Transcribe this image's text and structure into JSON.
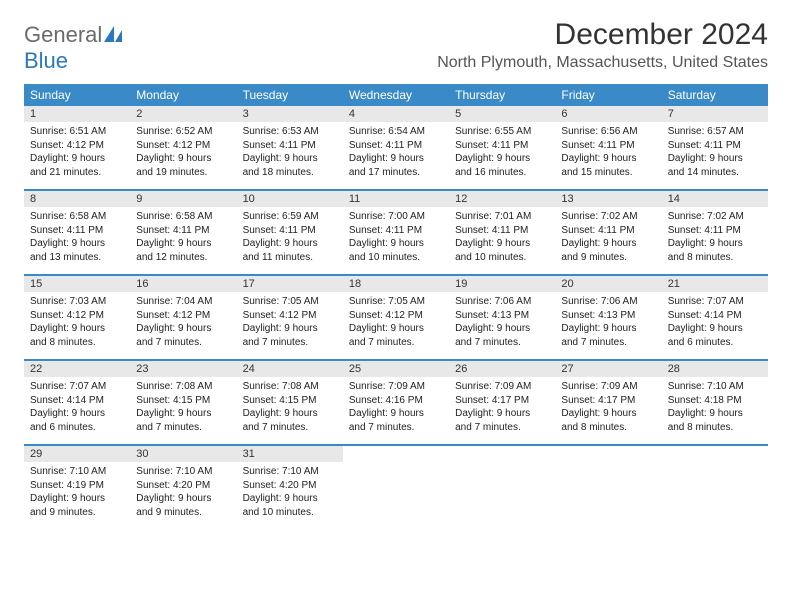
{
  "logo": {
    "text1": "General",
    "text2": "Blue"
  },
  "title": "December 2024",
  "location": "North Plymouth, Massachusetts, United States",
  "colors": {
    "header_bg": "#3a8ac7",
    "header_text": "#ffffff",
    "daynum_bg": "#e8e8e8",
    "logo_gray": "#6b6b6b",
    "logo_blue": "#2a78bd"
  },
  "daysOfWeek": [
    "Sunday",
    "Monday",
    "Tuesday",
    "Wednesday",
    "Thursday",
    "Friday",
    "Saturday"
  ],
  "weeks": [
    [
      {
        "n": "1",
        "sr": "Sunrise: 6:51 AM",
        "ss": "Sunset: 4:12 PM",
        "d1": "Daylight: 9 hours",
        "d2": "and 21 minutes."
      },
      {
        "n": "2",
        "sr": "Sunrise: 6:52 AM",
        "ss": "Sunset: 4:12 PM",
        "d1": "Daylight: 9 hours",
        "d2": "and 19 minutes."
      },
      {
        "n": "3",
        "sr": "Sunrise: 6:53 AM",
        "ss": "Sunset: 4:11 PM",
        "d1": "Daylight: 9 hours",
        "d2": "and 18 minutes."
      },
      {
        "n": "4",
        "sr": "Sunrise: 6:54 AM",
        "ss": "Sunset: 4:11 PM",
        "d1": "Daylight: 9 hours",
        "d2": "and 17 minutes."
      },
      {
        "n": "5",
        "sr": "Sunrise: 6:55 AM",
        "ss": "Sunset: 4:11 PM",
        "d1": "Daylight: 9 hours",
        "d2": "and 16 minutes."
      },
      {
        "n": "6",
        "sr": "Sunrise: 6:56 AM",
        "ss": "Sunset: 4:11 PM",
        "d1": "Daylight: 9 hours",
        "d2": "and 15 minutes."
      },
      {
        "n": "7",
        "sr": "Sunrise: 6:57 AM",
        "ss": "Sunset: 4:11 PM",
        "d1": "Daylight: 9 hours",
        "d2": "and 14 minutes."
      }
    ],
    [
      {
        "n": "8",
        "sr": "Sunrise: 6:58 AM",
        "ss": "Sunset: 4:11 PM",
        "d1": "Daylight: 9 hours",
        "d2": "and 13 minutes."
      },
      {
        "n": "9",
        "sr": "Sunrise: 6:58 AM",
        "ss": "Sunset: 4:11 PM",
        "d1": "Daylight: 9 hours",
        "d2": "and 12 minutes."
      },
      {
        "n": "10",
        "sr": "Sunrise: 6:59 AM",
        "ss": "Sunset: 4:11 PM",
        "d1": "Daylight: 9 hours",
        "d2": "and 11 minutes."
      },
      {
        "n": "11",
        "sr": "Sunrise: 7:00 AM",
        "ss": "Sunset: 4:11 PM",
        "d1": "Daylight: 9 hours",
        "d2": "and 10 minutes."
      },
      {
        "n": "12",
        "sr": "Sunrise: 7:01 AM",
        "ss": "Sunset: 4:11 PM",
        "d1": "Daylight: 9 hours",
        "d2": "and 10 minutes."
      },
      {
        "n": "13",
        "sr": "Sunrise: 7:02 AM",
        "ss": "Sunset: 4:11 PM",
        "d1": "Daylight: 9 hours",
        "d2": "and 9 minutes."
      },
      {
        "n": "14",
        "sr": "Sunrise: 7:02 AM",
        "ss": "Sunset: 4:11 PM",
        "d1": "Daylight: 9 hours",
        "d2": "and 8 minutes."
      }
    ],
    [
      {
        "n": "15",
        "sr": "Sunrise: 7:03 AM",
        "ss": "Sunset: 4:12 PM",
        "d1": "Daylight: 9 hours",
        "d2": "and 8 minutes."
      },
      {
        "n": "16",
        "sr": "Sunrise: 7:04 AM",
        "ss": "Sunset: 4:12 PM",
        "d1": "Daylight: 9 hours",
        "d2": "and 7 minutes."
      },
      {
        "n": "17",
        "sr": "Sunrise: 7:05 AM",
        "ss": "Sunset: 4:12 PM",
        "d1": "Daylight: 9 hours",
        "d2": "and 7 minutes."
      },
      {
        "n": "18",
        "sr": "Sunrise: 7:05 AM",
        "ss": "Sunset: 4:12 PM",
        "d1": "Daylight: 9 hours",
        "d2": "and 7 minutes."
      },
      {
        "n": "19",
        "sr": "Sunrise: 7:06 AM",
        "ss": "Sunset: 4:13 PM",
        "d1": "Daylight: 9 hours",
        "d2": "and 7 minutes."
      },
      {
        "n": "20",
        "sr": "Sunrise: 7:06 AM",
        "ss": "Sunset: 4:13 PM",
        "d1": "Daylight: 9 hours",
        "d2": "and 7 minutes."
      },
      {
        "n": "21",
        "sr": "Sunrise: 7:07 AM",
        "ss": "Sunset: 4:14 PM",
        "d1": "Daylight: 9 hours",
        "d2": "and 6 minutes."
      }
    ],
    [
      {
        "n": "22",
        "sr": "Sunrise: 7:07 AM",
        "ss": "Sunset: 4:14 PM",
        "d1": "Daylight: 9 hours",
        "d2": "and 6 minutes."
      },
      {
        "n": "23",
        "sr": "Sunrise: 7:08 AM",
        "ss": "Sunset: 4:15 PM",
        "d1": "Daylight: 9 hours",
        "d2": "and 7 minutes."
      },
      {
        "n": "24",
        "sr": "Sunrise: 7:08 AM",
        "ss": "Sunset: 4:15 PM",
        "d1": "Daylight: 9 hours",
        "d2": "and 7 minutes."
      },
      {
        "n": "25",
        "sr": "Sunrise: 7:09 AM",
        "ss": "Sunset: 4:16 PM",
        "d1": "Daylight: 9 hours",
        "d2": "and 7 minutes."
      },
      {
        "n": "26",
        "sr": "Sunrise: 7:09 AM",
        "ss": "Sunset: 4:17 PM",
        "d1": "Daylight: 9 hours",
        "d2": "and 7 minutes."
      },
      {
        "n": "27",
        "sr": "Sunrise: 7:09 AM",
        "ss": "Sunset: 4:17 PM",
        "d1": "Daylight: 9 hours",
        "d2": "and 8 minutes."
      },
      {
        "n": "28",
        "sr": "Sunrise: 7:10 AM",
        "ss": "Sunset: 4:18 PM",
        "d1": "Daylight: 9 hours",
        "d2": "and 8 minutes."
      }
    ],
    [
      {
        "n": "29",
        "sr": "Sunrise: 7:10 AM",
        "ss": "Sunset: 4:19 PM",
        "d1": "Daylight: 9 hours",
        "d2": "and 9 minutes."
      },
      {
        "n": "30",
        "sr": "Sunrise: 7:10 AM",
        "ss": "Sunset: 4:20 PM",
        "d1": "Daylight: 9 hours",
        "d2": "and 9 minutes."
      },
      {
        "n": "31",
        "sr": "Sunrise: 7:10 AM",
        "ss": "Sunset: 4:20 PM",
        "d1": "Daylight: 9 hours",
        "d2": "and 10 minutes."
      },
      null,
      null,
      null,
      null
    ]
  ]
}
